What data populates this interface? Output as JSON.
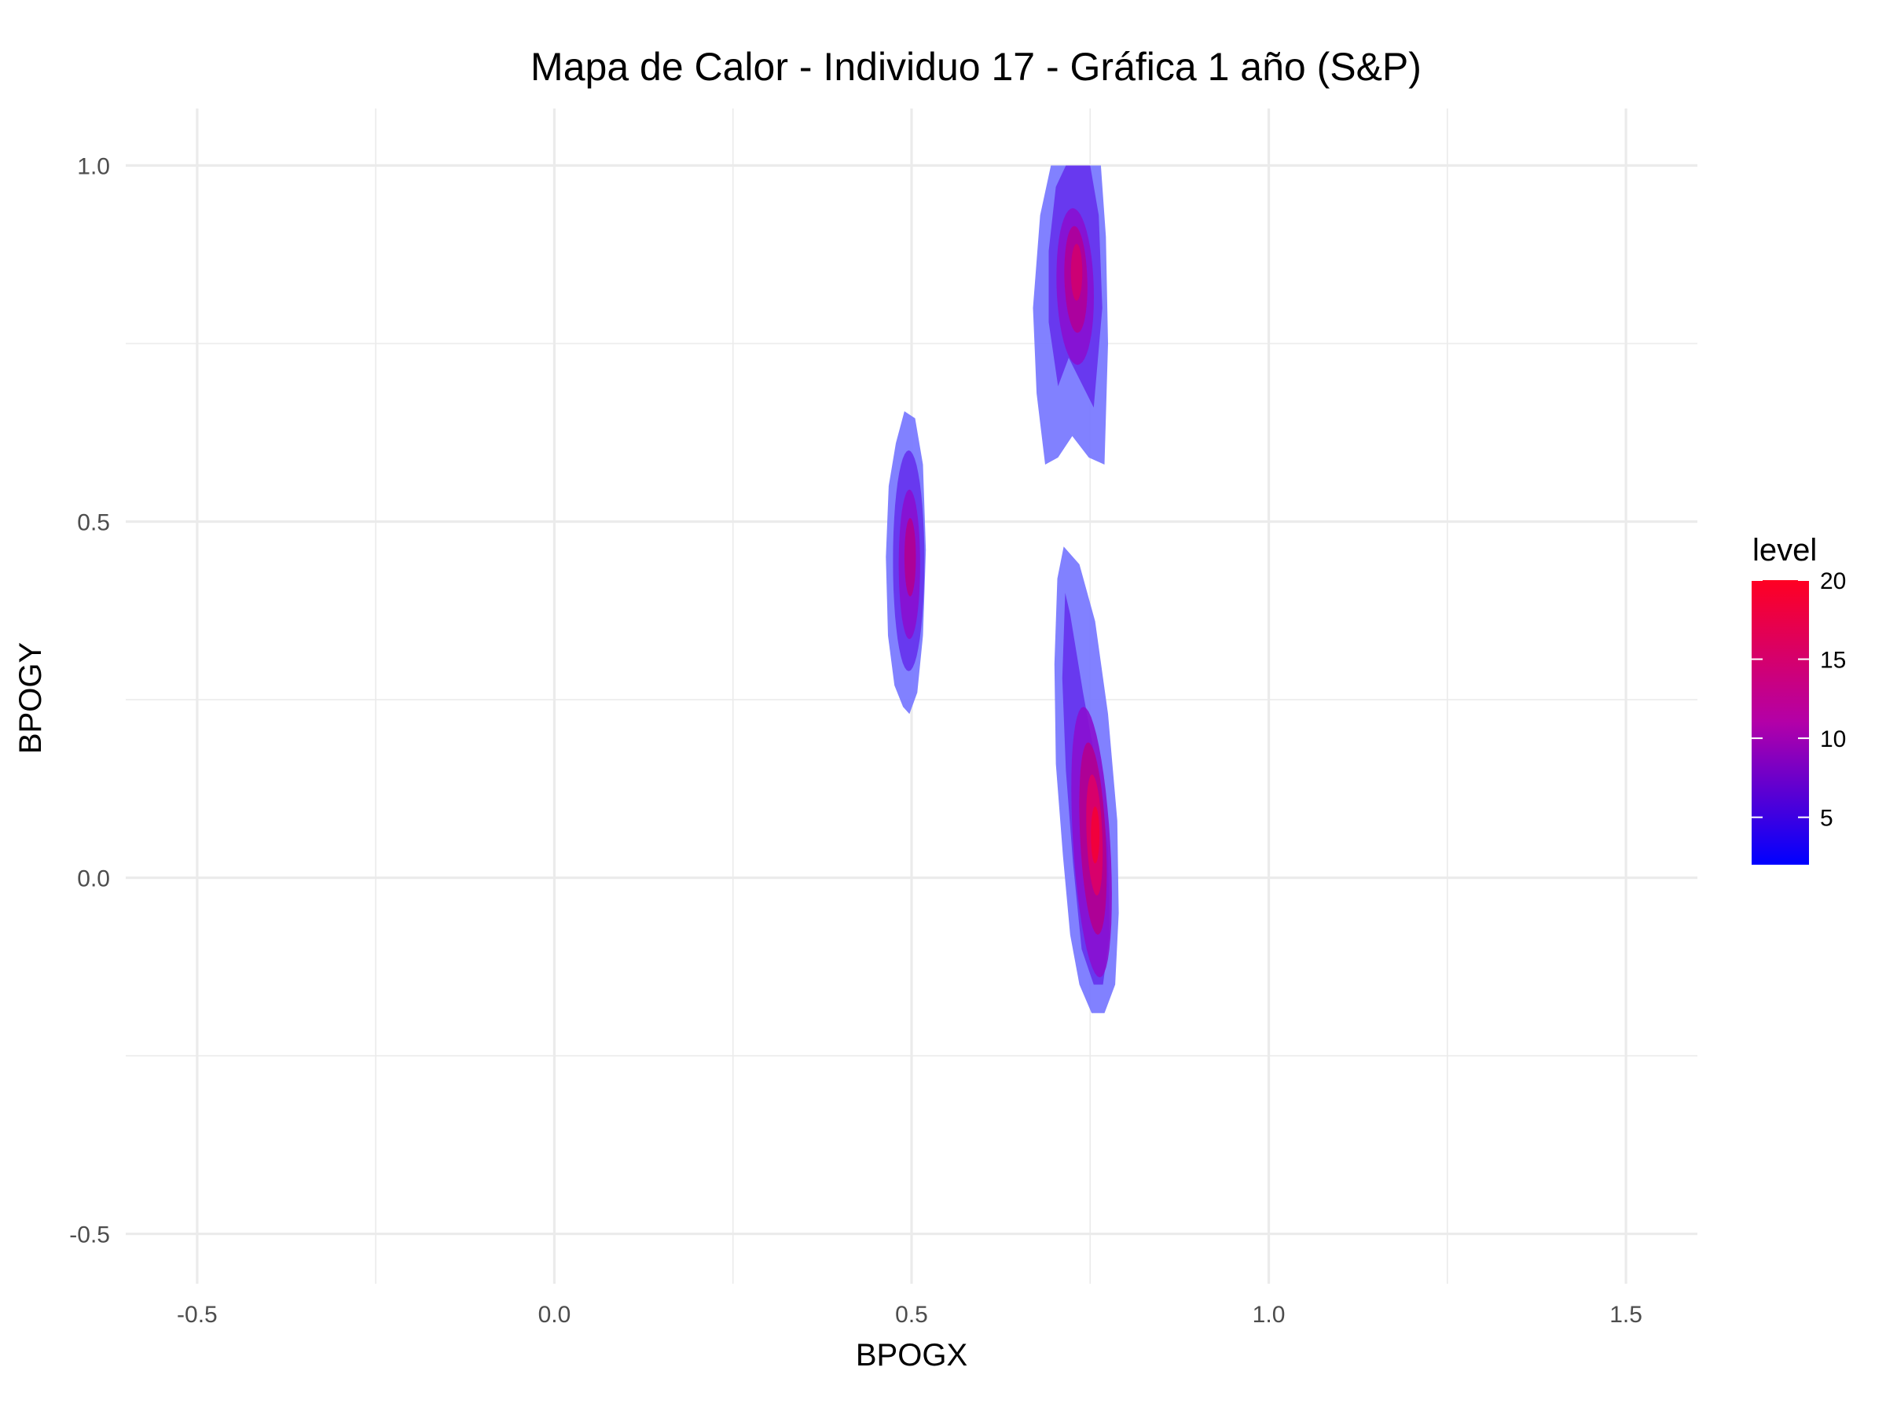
{
  "chart_data": {
    "type": "heatmap",
    "subtype": "2d-density-filled-contours",
    "title": "Mapa de Calor - Individuo 17 - Gráfica 1 año (S&P)",
    "xlabel": "BPOGX",
    "ylabel": "BPOGY",
    "xlim": [
      -0.6,
      1.6
    ],
    "ylim": [
      -0.57,
      1.08
    ],
    "x_ticks": [
      -0.5,
      0.0,
      0.5,
      1.0,
      1.5
    ],
    "x_tick_labels": [
      "-0.5",
      "0.0",
      "0.5",
      "1.0",
      "1.5"
    ],
    "y_ticks": [
      -0.5,
      0.0,
      0.5,
      1.0
    ],
    "y_tick_labels": [
      "-0.5",
      "0.0",
      "0.5",
      "1.0"
    ],
    "grid": true,
    "legend": {
      "title": "level",
      "position": "right",
      "range": [
        2,
        20
      ],
      "ticks": [
        5,
        10,
        15,
        20
      ],
      "tick_labels": [
        "5",
        "10",
        "15",
        "20"
      ],
      "color_low": "#0000ff",
      "color_high": "#ff0000"
    },
    "clusters": [
      {
        "name": "upper",
        "center": [
          0.73,
          0.84
        ],
        "peak_level": 14
      },
      {
        "name": "middle",
        "center": [
          0.5,
          0.44
        ],
        "peak_level": 12
      },
      {
        "name": "lower",
        "center": [
          0.76,
          0.05
        ],
        "peak_level": 20
      }
    ]
  }
}
